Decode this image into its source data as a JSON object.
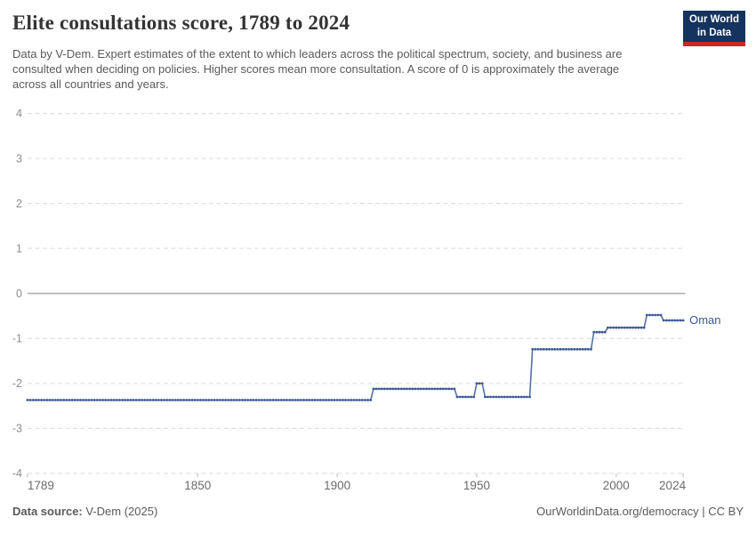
{
  "header": {
    "title": "Elite consultations score, 1789 to 2024",
    "subtitle": "Data by V-Dem. Expert estimates of the extent to which leaders across the political spectrum, society, and business are consulted when deciding on policies. Higher scores mean more consultation. A score of 0 is approximately the average across all countries and years.",
    "logo": {
      "line1": "Our World",
      "line2": "in Data",
      "bg_color": "#14335e",
      "accent_color": "#d0261c"
    }
  },
  "chart_data": {
    "type": "line",
    "title": "Elite consultations score, 1789 to 2024",
    "xlabel": "",
    "ylabel": "",
    "xlim": [
      1789,
      2024
    ],
    "ylim": [
      -4,
      4
    ],
    "grid": true,
    "legend_position": "end-of-line",
    "x_ticks": [
      1789,
      1850,
      1900,
      1950,
      2000,
      2024
    ],
    "y_ticks": [
      4,
      3,
      2,
      1,
      0,
      -1,
      -2,
      -3,
      -4
    ],
    "line_color": "#3d5a96",
    "line_connect_color": "#5570a6",
    "grid_color": "#e0e0e0",
    "zero_line_color": "#b0b0b0",
    "axis_text_color": "#8c8c8c",
    "x_axis_text_color": "#6b6b6b",
    "series": [
      {
        "name": "Oman",
        "entity_label": "Oman",
        "steps": [
          {
            "from": 1789,
            "to": 1912,
            "value": -2.37
          },
          {
            "from": 1913,
            "to": 1942,
            "value": -2.12
          },
          {
            "from": 1943,
            "to": 1949,
            "value": -2.3
          },
          {
            "from": 1950,
            "to": 1952,
            "value": -2.0
          },
          {
            "from": 1953,
            "to": 1969,
            "value": -2.3
          },
          {
            "from": 1970,
            "to": 1991,
            "value": -1.24
          },
          {
            "from": 1992,
            "to": 1996,
            "value": -0.86
          },
          {
            "from": 1997,
            "to": 2010,
            "value": -0.76
          },
          {
            "from": 2011,
            "to": 2016,
            "value": -0.48
          },
          {
            "from": 2017,
            "to": 2024,
            "value": -0.6
          }
        ]
      }
    ]
  },
  "footer": {
    "source_label": "Data source:",
    "source_value": " V-Dem (2025)",
    "credit": "OurWorldinData.org/democracy | CC BY"
  }
}
